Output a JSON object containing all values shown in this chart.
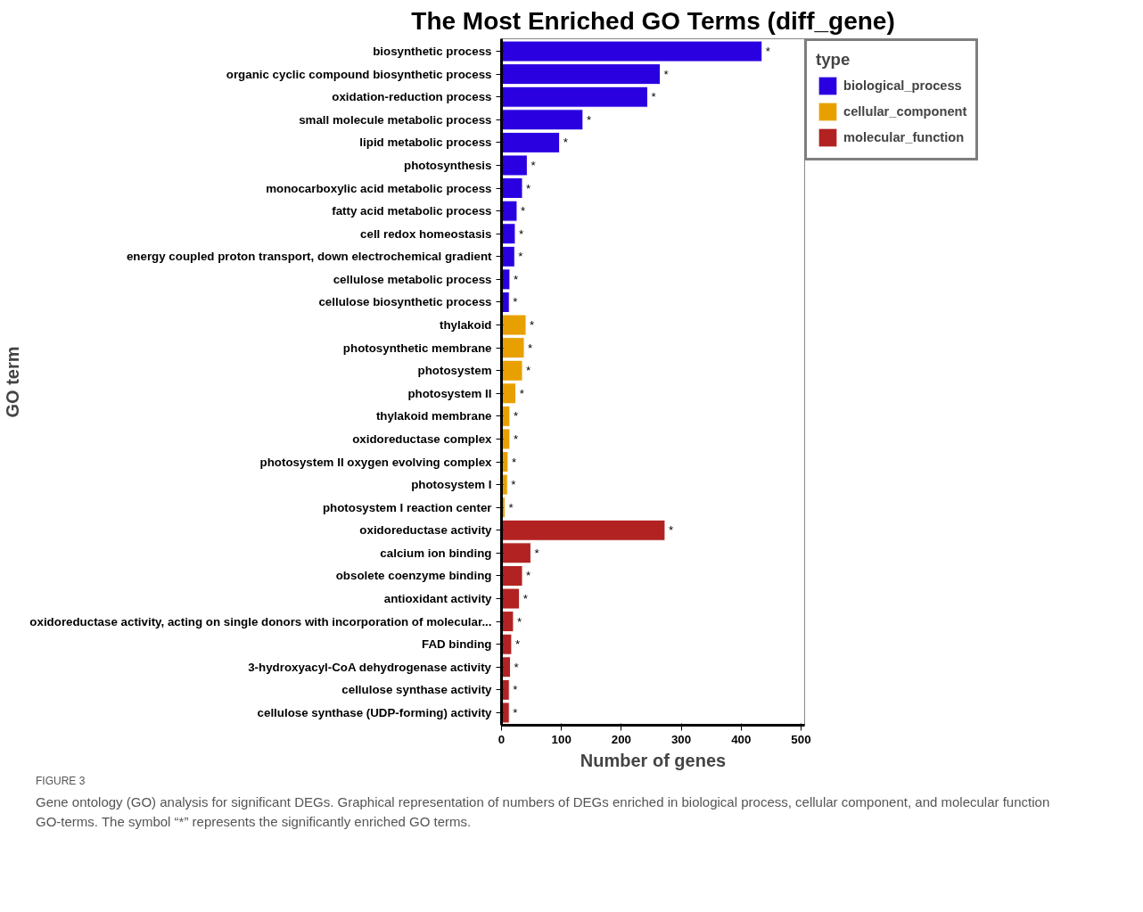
{
  "chart_data": {
    "type": "bar",
    "orientation": "horizontal",
    "title": "The Most Enriched GO Terms (diff_gene)",
    "xlabel": "Number of genes",
    "ylabel": "GO term",
    "legend_title": "type",
    "legend": "right",
    "grid": false,
    "categories": [
      "biosynthetic process",
      "organic cyclic compound biosynthetic process",
      "oxidation-reduction process",
      "small molecule metabolic process",
      "lipid metabolic process",
      "photosynthesis",
      "monocarboxylic acid metabolic process",
      "fatty acid metabolic process",
      "cell redox homeostasis",
      "energy coupled proton transport, down electrochemical gradient",
      "cellulose metabolic process",
      "cellulose biosynthetic process",
      "thylakoid",
      "photosynthetic membrane",
      "photosystem",
      "photosystem II",
      "thylakoid membrane",
      "oxidoreductase complex",
      "photosystem II oxygen evolving complex",
      "photosystem I",
      "photosystem I reaction center",
      "oxidoreductase activity",
      "calcium ion binding",
      "obsolete coenzyme binding",
      "antioxidant activity",
      "oxidoreductase activity, acting on single donors with incorporation of molecular...",
      "FAD binding",
      "3-hydroxyacyl-CoA dehydrogenase activity",
      "cellulose synthase activity",
      "cellulose synthase (UDP-forming) activity"
    ],
    "series": [
      {
        "name": "biological_process",
        "color": "#2a00e0",
        "values": [
          435,
          265,
          244,
          136,
          97,
          43,
          35,
          26,
          23,
          22,
          14,
          13,
          null,
          null,
          null,
          null,
          null,
          null,
          null,
          null,
          null,
          null,
          null,
          null,
          null,
          null,
          null,
          null,
          null,
          null
        ],
        "value_labels": [
          "*",
          "*",
          "*",
          "*",
          "*",
          "*",
          "*",
          "*",
          "*",
          "*",
          "*",
          "*",
          null,
          null,
          null,
          null,
          null,
          null,
          null,
          null,
          null,
          null,
          null,
          null,
          null,
          null,
          null,
          null,
          null,
          null
        ]
      },
      {
        "name": "cellular_component",
        "color": "#e8a000",
        "values": [
          null,
          null,
          null,
          null,
          null,
          null,
          null,
          null,
          null,
          null,
          null,
          null,
          41,
          38,
          35,
          24,
          14,
          14,
          11,
          10,
          6,
          null,
          null,
          null,
          null,
          null,
          null,
          null,
          null,
          null
        ],
        "value_labels": [
          null,
          null,
          null,
          null,
          null,
          null,
          null,
          null,
          null,
          null,
          null,
          null,
          "*",
          "*",
          "*",
          "*",
          "*",
          "*",
          "*",
          "*",
          "*",
          null,
          null,
          null,
          null,
          null,
          null,
          null,
          null,
          null
        ]
      },
      {
        "name": "molecular_function",
        "color": "#b22222",
        "values": [
          null,
          null,
          null,
          null,
          null,
          null,
          null,
          null,
          null,
          null,
          null,
          null,
          null,
          null,
          null,
          null,
          null,
          null,
          null,
          null,
          null,
          273,
          49,
          35,
          30,
          20,
          17,
          15,
          13,
          13
        ],
        "value_labels": [
          null,
          null,
          null,
          null,
          null,
          null,
          null,
          null,
          null,
          null,
          null,
          null,
          null,
          null,
          null,
          null,
          null,
          null,
          null,
          null,
          null,
          "*",
          "*",
          "*",
          "*",
          "*",
          "*",
          "*",
          "*",
          "*"
        ]
      }
    ],
    "xlim": [
      0,
      506
    ],
    "xticks": [
      0,
      100,
      200,
      300,
      400,
      500
    ],
    "annotations": [
      "FIGURE 3",
      "Gene ontology (GO) analysis for significant DEGs. Graphical representation of numbers of DEGs enriched in biological process, cellular component, and molecular function GO-terms. The symbol “*” represents the significantly enriched GO terms."
    ]
  }
}
